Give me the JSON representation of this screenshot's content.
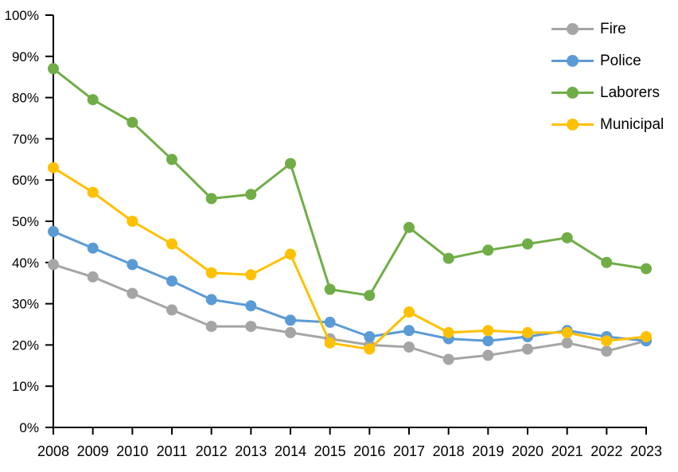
{
  "chart_data": {
    "type": "line",
    "title": "",
    "xlabel": "",
    "ylabel": "",
    "x": [
      "2008",
      "2009",
      "2010",
      "2011",
      "2012",
      "2013",
      "2014",
      "2015",
      "2016",
      "2017",
      "2018",
      "2019",
      "2020",
      "2021",
      "2022",
      "2023"
    ],
    "series": [
      {
        "name": "Fire",
        "color": "#A5A5A5",
        "values": [
          39.5,
          36.5,
          32.5,
          28.5,
          24.5,
          24.5,
          23,
          21.5,
          20,
          19.5,
          16.5,
          17.5,
          19,
          20.5,
          18.5,
          21
        ]
      },
      {
        "name": "Police",
        "color": "#5B9BD5",
        "values": [
          47.5,
          43.5,
          39.5,
          35.5,
          31,
          29.5,
          26,
          25.5,
          22,
          23.5,
          21.5,
          21,
          22,
          23.5,
          22,
          21
        ]
      },
      {
        "name": "Laborers",
        "color": "#70AD47",
        "values": [
          87,
          79.5,
          74,
          65,
          55.5,
          56.5,
          64,
          33.5,
          32,
          48.5,
          41,
          43,
          44.5,
          46,
          40,
          38.5
        ]
      },
      {
        "name": "Municipal",
        "color": "#FFC000",
        "values": [
          63,
          57,
          50,
          44.5,
          37.5,
          37,
          42,
          20.5,
          19,
          28,
          23,
          23.5,
          23,
          23,
          21,
          22
        ]
      }
    ],
    "ylim": [
      0,
      100
    ],
    "y_ticks": [
      "0%",
      "10%",
      "20%",
      "30%",
      "40%",
      "50%",
      "60%",
      "70%",
      "80%",
      "90%",
      "100%"
    ],
    "grid": false,
    "legend_position": "top-right",
    "axis_color": "#000000",
    "background": "#FFFFFF",
    "marker_style": "circle",
    "line_width": 3,
    "marker_radius": 7
  }
}
